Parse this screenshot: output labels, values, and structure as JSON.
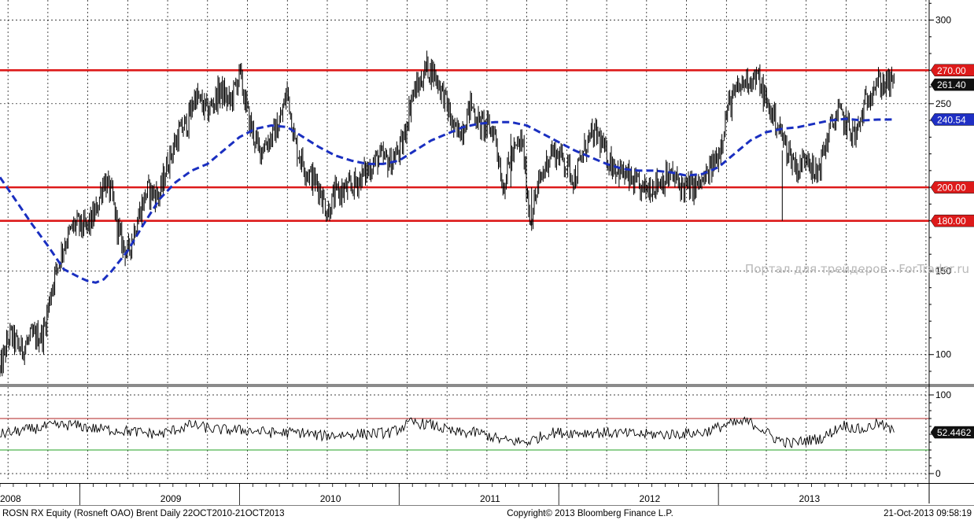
{
  "chart_data": [
    {
      "type": "line",
      "title": "",
      "instrument": "ROSN RX Equity (Rosneft OAO) Brent",
      "frequency": "Daily",
      "range": "22OCT2010-21OCT2013",
      "x_labels": [
        "2008",
        "2009",
        "2010",
        "2011",
        "2012",
        "2013"
      ],
      "x_domain": [
        2008.0,
        2013.82
      ],
      "ylim": [
        82,
        312
      ],
      "y_ticks": [
        100,
        150,
        250,
        300
      ],
      "grid": true,
      "series": [
        {
          "key": "price",
          "style": "black-bars",
          "anchors": [
            [
              2008.0,
              90
            ],
            [
              2008.06,
              112
            ],
            [
              2008.13,
              103
            ],
            [
              2008.2,
              110
            ],
            [
              2008.27,
              112
            ],
            [
              2008.33,
              143
            ],
            [
              2008.4,
              166
            ],
            [
              2008.47,
              178
            ],
            [
              2008.54,
              175
            ],
            [
              2008.6,
              185
            ],
            [
              2008.65,
              205
            ],
            [
              2008.7,
              195
            ],
            [
              2008.75,
              170
            ],
            [
              2008.8,
              160
            ],
            [
              2008.85,
              178
            ],
            [
              2008.92,
              198
            ],
            [
              2009.0,
              195
            ],
            [
              2009.05,
              215
            ],
            [
              2009.12,
              232
            ],
            [
              2009.18,
              240
            ],
            [
              2009.22,
              255
            ],
            [
              2009.3,
              245
            ],
            [
              2009.38,
              258
            ],
            [
              2009.44,
              250
            ],
            [
              2009.5,
              268
            ],
            [
              2009.56,
              240
            ],
            [
              2009.62,
              222
            ],
            [
              2009.7,
              230
            ],
            [
              2009.75,
              238
            ],
            [
              2009.8,
              258
            ],
            [
              2009.85,
              225
            ],
            [
              2009.92,
              210
            ],
            [
              2010.0,
              200
            ],
            [
              2010.05,
              185
            ],
            [
              2010.1,
              196
            ],
            [
              2010.2,
              200
            ],
            [
              2010.3,
              210
            ],
            [
              2010.37,
              218
            ],
            [
              2010.45,
              215
            ],
            [
              2010.52,
              225
            ],
            [
              2010.58,
              255
            ],
            [
              2010.63,
              262
            ],
            [
              2010.67,
              272
            ],
            [
              2010.72,
              268
            ],
            [
              2010.78,
              255
            ],
            [
              2010.85,
              232
            ],
            [
              2010.9,
              236
            ],
            [
              2010.95,
              250
            ],
            [
              2011.0,
              238
            ],
            [
              2011.05,
              236
            ],
            [
              2011.1,
              233
            ],
            [
              2011.15,
              200
            ],
            [
              2011.2,
              218
            ],
            [
              2011.27,
              228
            ],
            [
              2011.32,
              180
            ],
            [
              2011.37,
              200
            ],
            [
              2011.45,
              222
            ],
            [
              2011.52,
              218
            ],
            [
              2011.6,
              205
            ],
            [
              2011.68,
              228
            ],
            [
              2011.74,
              232
            ],
            [
              2011.8,
              218
            ],
            [
              2011.88,
              210
            ],
            [
              2011.95,
              204
            ],
            [
              2012.02,
              198
            ],
            [
              2012.1,
              202
            ],
            [
              2012.2,
              207
            ],
            [
              2012.28,
              200
            ],
            [
              2012.36,
              200
            ],
            [
              2012.42,
              205
            ],
            [
              2012.5,
              220
            ],
            [
              2012.56,
              248
            ],
            [
              2012.62,
              258
            ],
            [
              2012.68,
              265
            ],
            [
              2012.75,
              265
            ],
            [
              2012.8,
              250
            ],
            [
              2012.86,
              240
            ],
            [
              2012.92,
              225
            ],
            [
              2013.0,
              210
            ],
            [
              2013.06,
              222
            ],
            [
              2013.1,
              205
            ],
            [
              2013.14,
              215
            ],
            [
              2013.2,
              235
            ],
            [
              2013.25,
              245
            ],
            [
              2013.3,
              238
            ],
            [
              2013.36,
              230
            ],
            [
              2013.42,
              250
            ],
            [
              2013.47,
              262
            ],
            [
              2013.52,
              262
            ],
            [
              2013.56,
              262
            ],
            [
              2013.6,
              261.4
            ]
          ]
        },
        {
          "key": "moving-average",
          "style": "blue-dashed",
          "anchors": [
            [
              2008.0,
              206
            ],
            [
              2008.1,
              192
            ],
            [
              2008.2,
              178
            ],
            [
              2008.3,
              165
            ],
            [
              2008.4,
              151
            ],
            [
              2008.5,
              146
            ],
            [
              2008.55,
              144
            ],
            [
              2008.6,
              143
            ],
            [
              2008.65,
              145
            ],
            [
              2008.7,
              150
            ],
            [
              2008.8,
              162
            ],
            [
              2008.9,
              178
            ],
            [
              2009.0,
              193
            ],
            [
              2009.1,
              203
            ],
            [
              2009.2,
              210
            ],
            [
              2009.3,
              214
            ],
            [
              2009.4,
              222
            ],
            [
              2009.5,
              230
            ],
            [
              2009.6,
              235
            ],
            [
              2009.7,
              237
            ],
            [
              2009.8,
              236
            ],
            [
              2009.9,
              230
            ],
            [
              2010.0,
              224
            ],
            [
              2010.1,
              219
            ],
            [
              2010.2,
              216
            ],
            [
              2010.3,
              214
            ],
            [
              2010.4,
              214
            ],
            [
              2010.5,
              216
            ],
            [
              2010.6,
              222
            ],
            [
              2010.7,
              228
            ],
            [
              2010.8,
              232
            ],
            [
              2010.9,
              236
            ],
            [
              2011.0,
              238
            ],
            [
              2011.1,
              239
            ],
            [
              2011.2,
              239
            ],
            [
              2011.3,
              237
            ],
            [
              2011.4,
              232
            ],
            [
              2011.5,
              227
            ],
            [
              2011.6,
              222
            ],
            [
              2011.7,
              218
            ],
            [
              2011.8,
              214
            ],
            [
              2011.9,
              211
            ],
            [
              2012.0,
              210
            ],
            [
              2012.1,
              210
            ],
            [
              2012.2,
              209
            ],
            [
              2012.3,
              207
            ],
            [
              2012.4,
              208
            ],
            [
              2012.5,
              212
            ],
            [
              2012.6,
              220
            ],
            [
              2012.7,
              228
            ],
            [
              2012.8,
              233
            ],
            [
              2012.9,
              235
            ],
            [
              2013.0,
              236
            ],
            [
              2013.1,
              238
            ],
            [
              2013.2,
              240
            ],
            [
              2013.3,
              241
            ],
            [
              2013.4,
              240
            ],
            [
              2013.5,
              240.5
            ],
            [
              2013.6,
              240.54
            ]
          ]
        }
      ],
      "horizontal_lines": [
        {
          "value": 270,
          "label": "270.00",
          "color": "#dd1a1a",
          "tag_bg": "#dd1a1a",
          "tag_fg": "#ffffff"
        },
        {
          "value": 200,
          "label": "200.00",
          "color": "#dd1a1a",
          "tag_bg": "#dd1a1a",
          "tag_fg": "#ffffff"
        },
        {
          "value": 180,
          "label": "180.00",
          "color": "#dd1a1a",
          "tag_bg": "#dd1a1a",
          "tag_fg": "#ffffff"
        }
      ],
      "last_value_tags": [
        {
          "value": 261.4,
          "label": "261.40",
          "tag_bg": "#111111",
          "tag_fg": "#ffffff"
        },
        {
          "value": 240.54,
          "label": "240.54",
          "tag_bg": "#1f2fc4",
          "tag_fg": "#ffffff"
        }
      ],
      "colors": {
        "price": "#000000",
        "moving_average": "#1a2fc0",
        "levels": "#dd1a1a",
        "grid": "#000000"
      }
    },
    {
      "type": "line",
      "title": "",
      "x_domain": [
        2008.0,
        2013.82
      ],
      "ylim": [
        -10,
        110
      ],
      "y_ticks": [
        0,
        100
      ],
      "grid": true,
      "series": [
        {
          "key": "rsi",
          "style": "black-line",
          "anchors": [
            [
              2008.0,
              50
            ],
            [
              2008.15,
              55
            ],
            [
              2008.3,
              60
            ],
            [
              2008.45,
              62
            ],
            [
              2008.6,
              57
            ],
            [
              2008.75,
              55
            ],
            [
              2009.0,
              50
            ],
            [
              2009.2,
              62
            ],
            [
              2009.35,
              56
            ],
            [
              2009.55,
              55
            ],
            [
              2009.7,
              52
            ],
            [
              2009.9,
              52
            ],
            [
              2010.0,
              48
            ],
            [
              2010.2,
              50
            ],
            [
              2010.45,
              52
            ],
            [
              2010.58,
              65
            ],
            [
              2010.7,
              62
            ],
            [
              2010.85,
              52
            ],
            [
              2011.0,
              52
            ],
            [
              2011.15,
              42
            ],
            [
              2011.3,
              40
            ],
            [
              2011.45,
              52
            ],
            [
              2011.6,
              52
            ],
            [
              2011.8,
              52
            ],
            [
              2012.0,
              50
            ],
            [
              2012.2,
              50
            ],
            [
              2012.4,
              52
            ],
            [
              2012.55,
              62
            ],
            [
              2012.68,
              66
            ],
            [
              2012.75,
              60
            ],
            [
              2012.85,
              45
            ],
            [
              2012.95,
              38
            ],
            [
              2013.05,
              42
            ],
            [
              2013.15,
              45
            ],
            [
              2013.28,
              62
            ],
            [
              2013.4,
              55
            ],
            [
              2013.5,
              64
            ],
            [
              2013.56,
              58
            ],
            [
              2013.6,
              52.4462
            ]
          ]
        }
      ],
      "horizontal_lines": [
        {
          "value": 70,
          "color": "#b22222"
        },
        {
          "value": 30,
          "color": "#22a022"
        }
      ],
      "last_value_tags": [
        {
          "value": 52.4462,
          "label": "52.4462",
          "tag_bg": "#111111",
          "tag_fg": "#ffffff"
        }
      ]
    }
  ],
  "watermark": "Портал для трейдеров - ForTrader.ru",
  "footer": {
    "left": "ROSN RX Equity (Rosneft OAO) Brent  Daily 22OCT2010-21OCT2013",
    "center": "Copyright© 2013 Bloomberg Finance L.P.",
    "right": "21-Oct-2013 09:58:19"
  }
}
